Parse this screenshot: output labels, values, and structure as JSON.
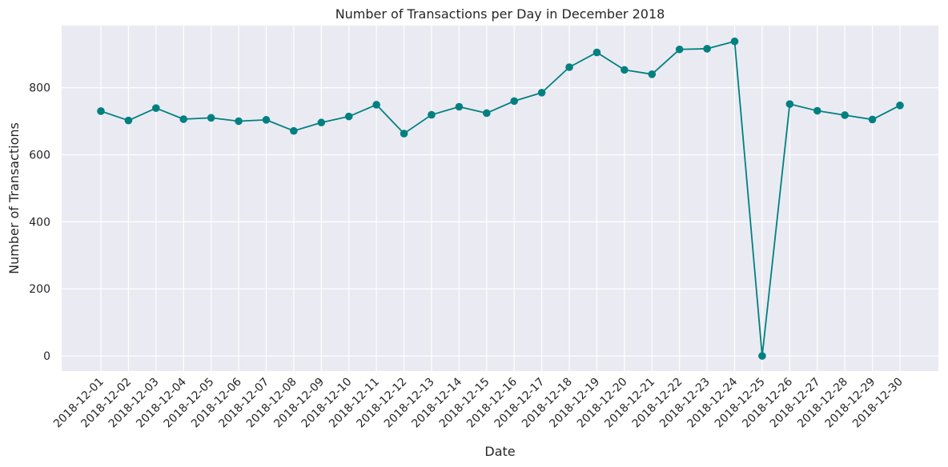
{
  "chart_data": {
    "type": "line",
    "title": "Number of Transactions per Day in December 2018",
    "xlabel": "Date",
    "ylabel": "Number of Transactions",
    "categories": [
      "2018-12-01",
      "2018-12-02",
      "2018-12-03",
      "2018-12-04",
      "2018-12-05",
      "2018-12-06",
      "2018-12-07",
      "2018-12-08",
      "2018-12-09",
      "2018-12-10",
      "2018-12-11",
      "2018-12-12",
      "2018-12-13",
      "2018-12-14",
      "2018-12-15",
      "2018-12-16",
      "2018-12-17",
      "2018-12-18",
      "2018-12-19",
      "2018-12-20",
      "2018-12-21",
      "2018-12-22",
      "2018-12-23",
      "2018-12-24",
      "2018-12-25",
      "2018-12-26",
      "2018-12-27",
      "2018-12-28",
      "2018-12-29",
      "2018-12-30"
    ],
    "series": [
      {
        "values": [
          730,
          702,
          739,
          706,
          710,
          700,
          704,
          671,
          696,
          714,
          749,
          663,
          719,
          743,
          724,
          760,
          785,
          861,
          905,
          853,
          840,
          914,
          916,
          938,
          0,
          751,
          731,
          718,
          705,
          747
        ]
      }
    ],
    "ylim": [
      -45,
      985
    ],
    "yticks": [
      0,
      200,
      400,
      600,
      800
    ],
    "grid": true,
    "legend": "none",
    "colors": {
      "line": "#008080",
      "background": "#eaeaf2",
      "grid": "#ffffff",
      "text": "#262626"
    }
  }
}
